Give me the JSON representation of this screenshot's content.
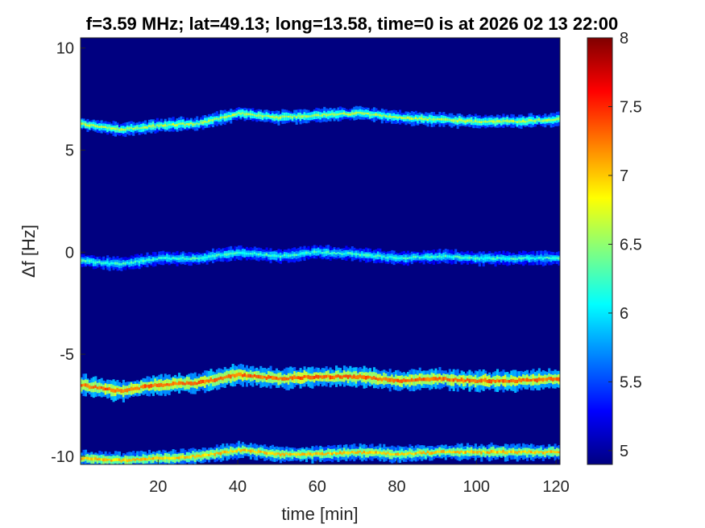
{
  "chart_data": {
    "type": "heatmap",
    "title": "f=3.59 MHz;  lat=49.13; long=13.58, time=0 is at 2026 02 13 22:00",
    "xlabel": "time [min]",
    "ylabel": "Δf [Hz]",
    "xlim": [
      0.5,
      121
    ],
    "ylim": [
      -10.4,
      10.5
    ],
    "xticks": [
      20,
      40,
      60,
      80,
      100,
      120
    ],
    "yticks": [
      -10,
      -5,
      0,
      5,
      10
    ],
    "colormap": "jet",
    "colorbar": {
      "range": [
        4.9,
        8
      ],
      "ticks": [
        5,
        5.5,
        6,
        6.5,
        7,
        7.5,
        8
      ]
    },
    "background_value": 4.9,
    "series": [
      {
        "x": [
          0,
          10,
          20,
          30,
          40,
          50,
          60,
          70,
          80,
          90,
          100,
          110,
          120
        ],
        "y": [
          6.3,
          6.0,
          6.2,
          6.3,
          6.8,
          6.6,
          6.7,
          6.8,
          6.6,
          6.5,
          6.4,
          6.4,
          6.5
        ],
        "peak": 6.6,
        "spread": 0.3
      },
      {
        "x": [
          0,
          10,
          20,
          30,
          40,
          50,
          60,
          70,
          80,
          90,
          100,
          110,
          120
        ],
        "y": [
          -0.4,
          -0.6,
          -0.3,
          -0.3,
          0.0,
          -0.2,
          0.0,
          -0.1,
          -0.3,
          -0.2,
          -0.3,
          -0.3,
          -0.3
        ],
        "peak": 6.2,
        "spread": 0.3
      },
      {
        "x": [
          0,
          10,
          20,
          30,
          40,
          50,
          60,
          70,
          80,
          90,
          100,
          110,
          120
        ],
        "y": [
          -6.5,
          -6.8,
          -6.5,
          -6.4,
          -6.0,
          -6.2,
          -6.1,
          -6.1,
          -6.3,
          -6.2,
          -6.3,
          -6.3,
          -6.2
        ],
        "peak": 7.3,
        "spread": 0.45
      },
      {
        "x": [
          0,
          10,
          20,
          30,
          40,
          50,
          60,
          70,
          80,
          90,
          100,
          110,
          120
        ],
        "y": [
          -10.1,
          -10.2,
          -10.1,
          -10.0,
          -9.7,
          -9.9,
          -9.9,
          -9.8,
          -9.9,
          -9.8,
          -9.8,
          -9.8,
          -9.8
        ],
        "peak": 7.0,
        "spread": 0.35
      }
    ]
  }
}
